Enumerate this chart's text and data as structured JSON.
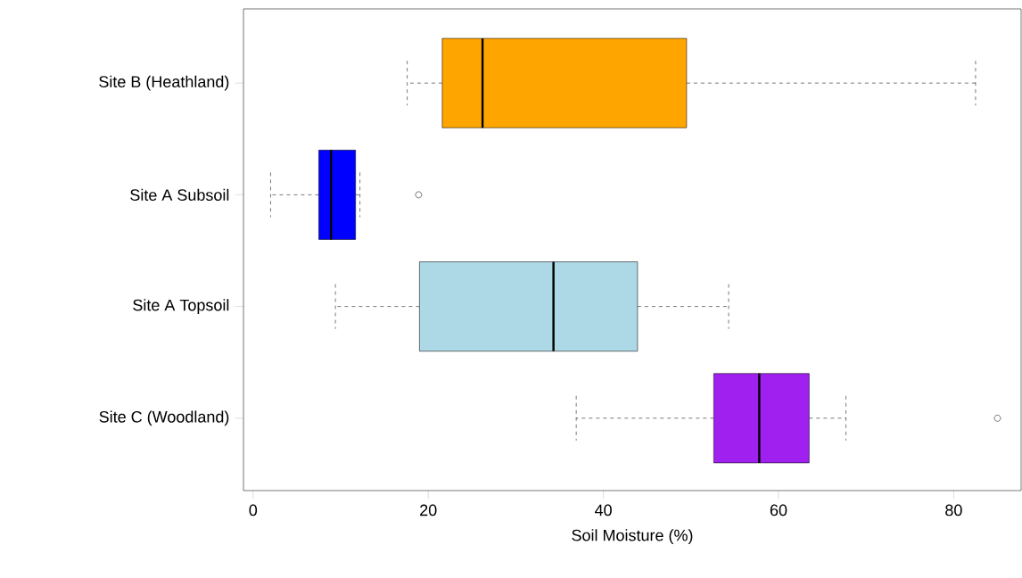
{
  "chart_data": {
    "type": "box",
    "orientation": "horizontal",
    "xlabel": "Soil Moisture (%)",
    "categories": [
      "Site B (Heathland)",
      "Site A Subsoil",
      "Site A Topsoil",
      "Site C (Woodland)"
    ],
    "colors": [
      "#ffa500",
      "#0000ff",
      "#add8e6",
      "#a020f0"
    ],
    "boxes": [
      {
        "low": 17.6,
        "q1": 21.6,
        "median": 26.2,
        "q3": 49.5,
        "high": 82.5
      },
      {
        "low": 2.0,
        "q1": 7.5,
        "median": 8.9,
        "q3": 11.7,
        "high": 12.2,
        "outliers": [
          18.9
        ]
      },
      {
        "low": 9.4,
        "q1": 19.0,
        "median": 34.3,
        "q3": 43.9,
        "high": 54.3
      },
      {
        "low": 36.9,
        "q1": 52.6,
        "median": 57.8,
        "q3": 63.5,
        "high": 67.7,
        "outliers": [
          85.0
        ]
      }
    ],
    "xlim": [
      -1.1,
      87.7
    ],
    "xticks": [
      0,
      20,
      40,
      60,
      80
    ],
    "grid": false
  }
}
